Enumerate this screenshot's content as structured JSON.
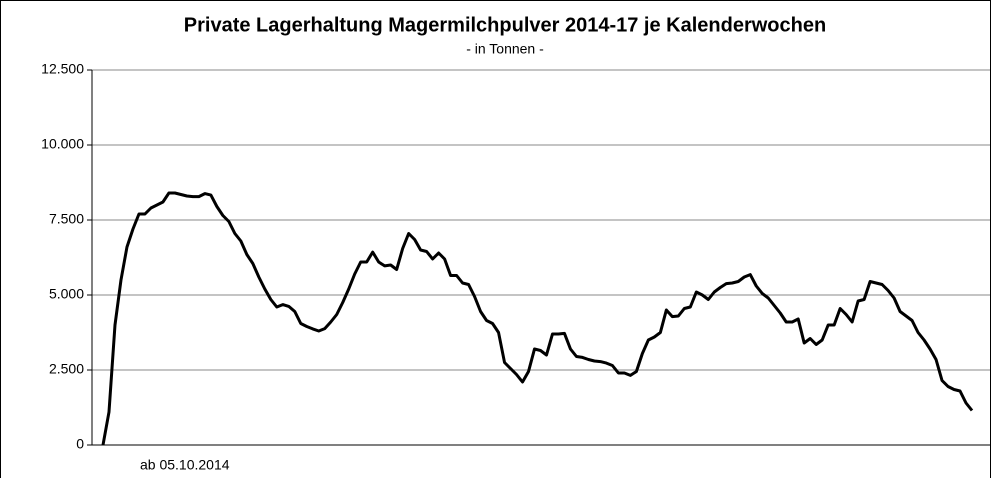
{
  "chart_data": {
    "type": "line",
    "title": "Private Lagerhaltung Magermilchpulver 2014-17 je Kalenderwochen",
    "subtitle": "- in Tonnen -",
    "annotation": "ab 05.10.2014",
    "categories": [
      null,
      null,
      null,
      null,
      null,
      null,
      null,
      null,
      null,
      null,
      null,
      null,
      null,
      null,
      null,
      null,
      null,
      null,
      null,
      null,
      null,
      null,
      null,
      null,
      null,
      null,
      null,
      null,
      null,
      null,
      null,
      null,
      null,
      null,
      null,
      null,
      null,
      null,
      null,
      null,
      null,
      null,
      null,
      null,
      null,
      null,
      null,
      null,
      null,
      null,
      null,
      null,
      null,
      null,
      null,
      null,
      null,
      null,
      null,
      null,
      null,
      null,
      null,
      null,
      null,
      null,
      null,
      null,
      null,
      null,
      null,
      null,
      null,
      null,
      null,
      null,
      null,
      null,
      null,
      null,
      null,
      null,
      null,
      null,
      null,
      null,
      null,
      null,
      null,
      null,
      null,
      null,
      null,
      null,
      null,
      null,
      null,
      null,
      null,
      null,
      null,
      null,
      null,
      null,
      null,
      null,
      null,
      null,
      null,
      null,
      null,
      null,
      null,
      null,
      null,
      null,
      null,
      null,
      null,
      null,
      null,
      null,
      null,
      null,
      null,
      null,
      null,
      null,
      null,
      null,
      null,
      null,
      null,
      null,
      null,
      null,
      null,
      null,
      null,
      null,
      null,
      null,
      null,
      null,
      null,
      null
    ],
    "values": [
      0,
      1100,
      4000,
      5500,
      6600,
      7200,
      7700,
      7700,
      7900,
      8000,
      8100,
      8400,
      8400,
      8350,
      8300,
      8280,
      8280,
      8380,
      8330,
      7950,
      7650,
      7450,
      7050,
      6800,
      6350,
      6050,
      5600,
      5200,
      4850,
      4600,
      4680,
      4620,
      4450,
      4050,
      3950,
      3870,
      3800,
      3880,
      4100,
      4350,
      4750,
      5200,
      5700,
      6100,
      6100,
      6430,
      6100,
      5970,
      6000,
      5850,
      6550,
      7050,
      6850,
      6500,
      6450,
      6200,
      6400,
      6200,
      5650,
      5650,
      5400,
      5350,
      4950,
      4450,
      4150,
      4050,
      3750,
      2750,
      2550,
      2350,
      2100,
      2450,
      3200,
      3150,
      3000,
      3700,
      3700,
      3720,
      3200,
      2950,
      2920,
      2850,
      2800,
      2780,
      2730,
      2650,
      2400,
      2400,
      2320,
      2450,
      3050,
      3500,
      3600,
      3750,
      4500,
      4280,
      4300,
      4550,
      4600,
      5100,
      5000,
      4850,
      5100,
      5250,
      5380,
      5400,
      5450,
      5600,
      5680,
      5300,
      5050,
      4900,
      4650,
      4400,
      4100,
      4100,
      4200,
      3400,
      3550,
      3350,
      3500,
      4000,
      4000,
      4550,
      4350,
      4100,
      4800,
      4850,
      5450,
      5400,
      5350,
      5150,
      4900,
      4450,
      4300,
      4150,
      3750,
      3500,
      3200,
      2850,
      2150,
      1950,
      1850,
      1800,
      1400,
      1150
    ],
    "color": "#000000",
    "ylim": [
      0,
      12500
    ],
    "yticks": [
      0,
      {
        "value": 2500,
        "label": "2.500"
      },
      {
        "value": 5000,
        "label": "5.000"
      },
      {
        "value": 7500,
        "label": "7.500"
      },
      {
        "value": 10000,
        "label": "10.000"
      },
      {
        "value": 12500,
        "label": "12.500"
      }
    ],
    "grid": true
  }
}
